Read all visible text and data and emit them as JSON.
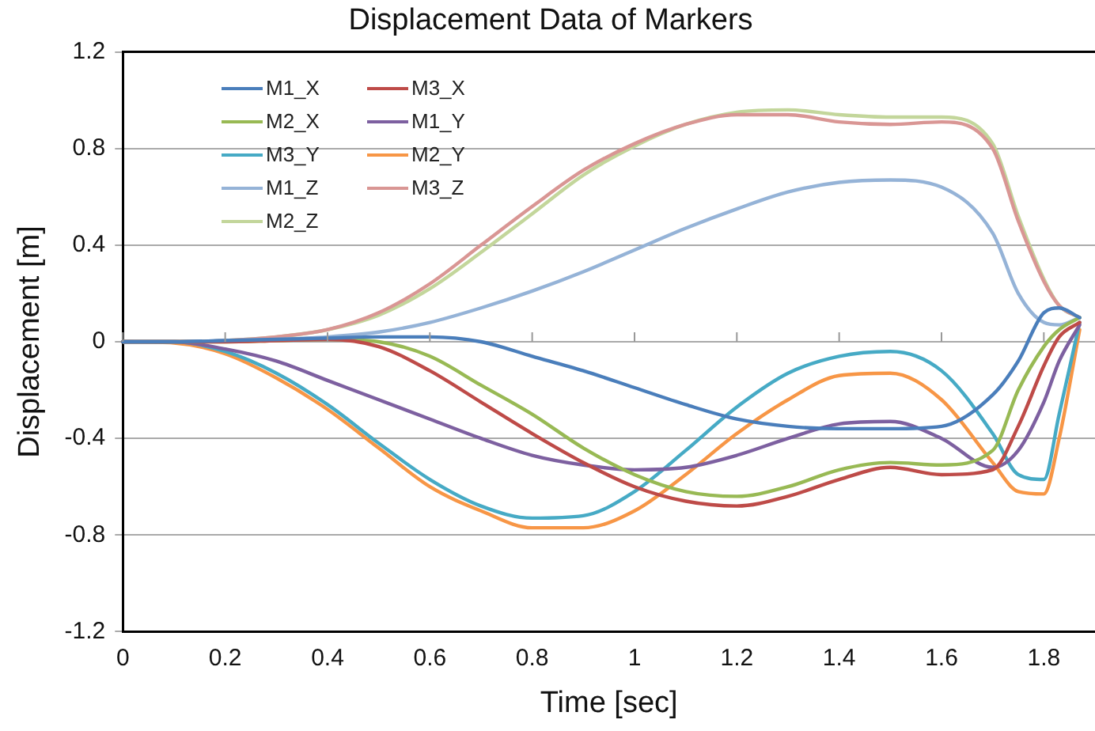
{
  "chart_data": {
    "type": "line",
    "title": "Displacement Data of Markers",
    "xlabel": "Time [sec]",
    "ylabel": "Displacement [m]",
    "x": [
      0,
      0.1,
      0.2,
      0.3,
      0.4,
      0.5,
      0.6,
      0.7,
      0.8,
      0.9,
      1.0,
      1.1,
      1.2,
      1.3,
      1.4,
      1.5,
      1.6,
      1.7,
      1.75,
      1.8,
      1.83,
      1.87
    ],
    "xlim": [
      0,
      1.9
    ],
    "xticks": [
      0,
      0.2,
      0.4,
      0.6,
      0.8,
      1,
      1.2,
      1.4,
      1.6,
      1.8
    ],
    "ylim": [
      -1.2,
      1.2
    ],
    "yticks": [
      -1.2,
      -0.8,
      -0.4,
      0,
      0.4,
      0.8,
      1.2
    ],
    "grid": "y",
    "legend": "top left",
    "marker": "none",
    "line_style": "solid",
    "series": [
      {
        "name": "M1_X",
        "color": "#4a7ebb",
        "values": [
          0,
          0,
          0.005,
          0.01,
          0.015,
          0.02,
          0.02,
          0,
          -0.06,
          -0.12,
          -0.19,
          -0.26,
          -0.32,
          -0.35,
          -0.36,
          -0.36,
          -0.35,
          -0.22,
          -0.08,
          0.12,
          0.14,
          0.1
        ]
      },
      {
        "name": "M3_X",
        "color": "#be4b48",
        "values": [
          0,
          0,
          0,
          0.005,
          0.01,
          -0.02,
          -0.12,
          -0.25,
          -0.38,
          -0.5,
          -0.6,
          -0.66,
          -0.68,
          -0.64,
          -0.57,
          -0.52,
          -0.55,
          -0.53,
          -0.35,
          -0.1,
          0.02,
          0.08
        ]
      },
      {
        "name": "M2_X",
        "color": "#98b954",
        "values": [
          0,
          0,
          0,
          0.005,
          0.01,
          0,
          -0.06,
          -0.18,
          -0.3,
          -0.44,
          -0.55,
          -0.62,
          -0.64,
          -0.6,
          -0.53,
          -0.5,
          -0.51,
          -0.45,
          -0.2,
          -0.02,
          0.05,
          0.1
        ]
      },
      {
        "name": "M1_Y",
        "color": "#7d60a0",
        "values": [
          0,
          0,
          -0.03,
          -0.08,
          -0.16,
          -0.24,
          -0.32,
          -0.4,
          -0.47,
          -0.51,
          -0.53,
          -0.52,
          -0.47,
          -0.4,
          -0.34,
          -0.33,
          -0.4,
          -0.52,
          -0.45,
          -0.25,
          -0.08,
          0.07
        ]
      },
      {
        "name": "M3_Y",
        "color": "#46aac5",
        "values": [
          0,
          0,
          -0.04,
          -0.13,
          -0.26,
          -0.42,
          -0.57,
          -0.68,
          -0.73,
          -0.72,
          -0.62,
          -0.45,
          -0.27,
          -0.13,
          -0.06,
          -0.04,
          -0.12,
          -0.38,
          -0.55,
          -0.57,
          -0.3,
          0.08
        ]
      },
      {
        "name": "M2_Y",
        "color": "#f79646",
        "values": [
          0,
          -0.005,
          -0.05,
          -0.15,
          -0.28,
          -0.44,
          -0.6,
          -0.7,
          -0.77,
          -0.77,
          -0.7,
          -0.55,
          -0.38,
          -0.24,
          -0.14,
          -0.13,
          -0.24,
          -0.5,
          -0.62,
          -0.63,
          -0.4,
          0.05
        ]
      },
      {
        "name": "M1_Z",
        "color": "#95b3d7",
        "values": [
          0,
          0,
          0.005,
          0.01,
          0.02,
          0.04,
          0.08,
          0.14,
          0.21,
          0.29,
          0.38,
          0.47,
          0.55,
          0.62,
          0.66,
          0.67,
          0.64,
          0.45,
          0.2,
          0.08,
          0.07,
          0.1
        ]
      },
      {
        "name": "M3_Z",
        "color": "#d99694",
        "values": [
          0,
          0,
          0.005,
          0.02,
          0.05,
          0.12,
          0.24,
          0.4,
          0.56,
          0.71,
          0.82,
          0.9,
          0.94,
          0.94,
          0.91,
          0.9,
          0.91,
          0.8,
          0.5,
          0.25,
          0.15,
          0.1
        ]
      },
      {
        "name": "M2_Z",
        "color": "#c3d69b",
        "values": [
          0,
          0,
          0.005,
          0.02,
          0.05,
          0.11,
          0.22,
          0.37,
          0.53,
          0.69,
          0.81,
          0.9,
          0.95,
          0.96,
          0.94,
          0.93,
          0.93,
          0.82,
          0.52,
          0.26,
          0.15,
          0.1
        ]
      }
    ]
  }
}
